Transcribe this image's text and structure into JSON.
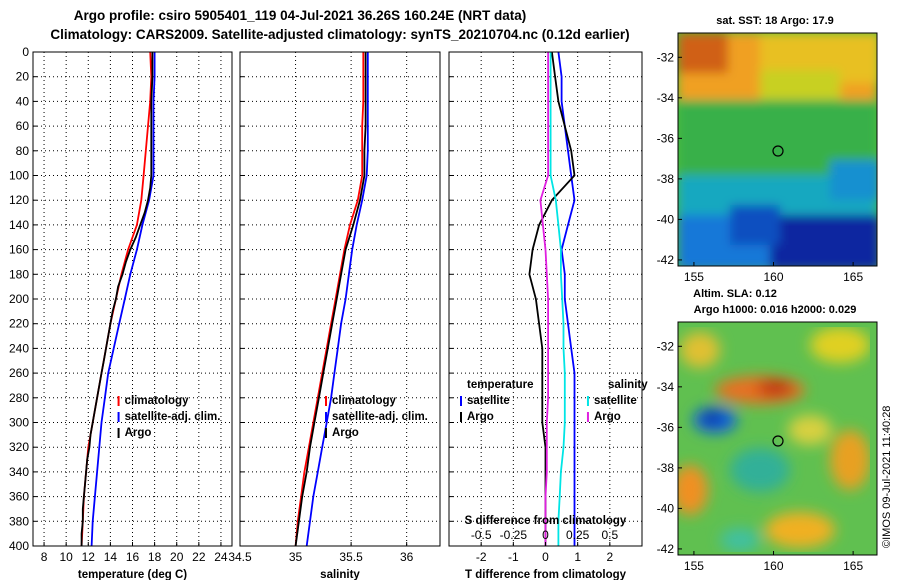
{
  "title_line1": "Argo profile: csiro 5905401_119 04-Jul-2021 36.26S 160.24E (NRT data)",
  "title_line2": "Climatology: CARS2009. Satellite-adjusted climatology: synTS_20210704.nc (0.12d earlier)",
  "watermark": "©IMOS 09-Jul-2021 11:40:28",
  "colors": {
    "red": "#ff0000",
    "blue": "#0000ff",
    "black": "#000000",
    "cyan": "#00e5e5",
    "magenta": "#e020e0"
  },
  "chart_data": [
    {
      "type": "line",
      "name": "temperature",
      "xlabel": "temperature (deg C)",
      "ylabel": "depth",
      "xlim": [
        7,
        25
      ],
      "ylim": [
        0,
        400
      ],
      "y_inverted": true,
      "xticks": [
        8,
        10,
        12,
        14,
        16,
        18,
        20,
        22,
        24
      ],
      "yticks": [
        0,
        20,
        40,
        60,
        80,
        100,
        120,
        140,
        160,
        180,
        200,
        220,
        240,
        260,
        280,
        300,
        320,
        340,
        360,
        380,
        400
      ],
      "grid": true,
      "legend_position": "lower-right",
      "series": [
        {
          "name": "climatology",
          "color": "#ff0000",
          "x": [
            17.6,
            17.7,
            17.6,
            17.4,
            17.2,
            17.0,
            16.8,
            16.4,
            15.6,
            15.0,
            14.5,
            14.0,
            13.6,
            13.2,
            12.8,
            12.4,
            12.0,
            11.8,
            11.6,
            11.5,
            11.4
          ],
          "y": [
            0,
            20,
            40,
            60,
            80,
            100,
            120,
            140,
            160,
            180,
            200,
            220,
            240,
            260,
            280,
            300,
            320,
            340,
            360,
            380,
            400
          ]
        },
        {
          "name": "satellite-adj. clim.",
          "color": "#0000ff",
          "x": [
            18.0,
            18.0,
            17.9,
            17.9,
            17.9,
            17.9,
            17.5,
            16.9,
            16.4,
            15.8,
            15.3,
            14.8,
            14.3,
            13.8,
            13.5,
            13.2,
            13.0,
            12.8,
            12.6,
            12.4,
            12.3
          ],
          "y": [
            0,
            20,
            40,
            60,
            80,
            100,
            120,
            140,
            160,
            180,
            200,
            220,
            240,
            260,
            280,
            300,
            320,
            340,
            360,
            380,
            400
          ]
        },
        {
          "name": "Argo",
          "color": "#000000",
          "x": [
            17.8,
            17.8,
            17.7,
            17.7,
            17.7,
            17.7,
            17.6,
            17.4,
            17.1,
            16.7,
            16.3,
            15.8,
            15.4,
            15.1,
            14.7,
            14.5,
            14.2,
            14.0,
            13.8,
            13.6,
            13.4,
            13.2,
            13.0,
            12.8,
            12.6,
            12.4,
            12.2,
            12.1,
            11.9,
            11.8,
            11.7,
            11.6,
            11.5,
            11.5,
            11.4,
            11.4
          ],
          "y": [
            0,
            20,
            40,
            60,
            80,
            100,
            110,
            120,
            130,
            140,
            150,
            160,
            170,
            180,
            190,
            200,
            210,
            220,
            230,
            240,
            250,
            260,
            270,
            280,
            290,
            300,
            310,
            320,
            330,
            340,
            350,
            360,
            370,
            380,
            390,
            400
          ]
        }
      ],
      "legend": [
        "climatology",
        "satellite-adj. clim.",
        "Argo"
      ]
    },
    {
      "type": "line",
      "name": "salinity",
      "xlabel": "salinity",
      "ylabel": "depth",
      "xlim": [
        34.5,
        36.3
      ],
      "ylim": [
        0,
        400
      ],
      "y_inverted": true,
      "xticks": [
        34.5,
        35,
        35.5,
        36
      ],
      "xticklabels": [
        "34.5",
        "35",
        "35.5",
        "36"
      ],
      "grid": true,
      "legend_position": "lower-right",
      "series": [
        {
          "name": "climatology",
          "color": "#ff0000",
          "x": [
            35.61,
            35.61,
            35.61,
            35.6,
            35.6,
            35.6,
            35.56,
            35.49,
            35.44,
            35.4,
            35.36,
            35.32,
            35.28,
            35.24,
            35.2,
            35.16,
            35.12,
            35.08,
            35.05,
            35.02,
            35.0
          ],
          "y": [
            0,
            20,
            40,
            60,
            80,
            100,
            120,
            140,
            160,
            180,
            200,
            220,
            240,
            260,
            280,
            300,
            320,
            340,
            360,
            380,
            400
          ]
        },
        {
          "name": "satellite-adj. clim.",
          "color": "#0000ff",
          "x": [
            35.65,
            35.65,
            35.65,
            35.65,
            35.65,
            35.64,
            35.6,
            35.55,
            35.51,
            35.48,
            35.45,
            35.41,
            35.38,
            35.35,
            35.32,
            35.28,
            35.24,
            35.2,
            35.16,
            35.13,
            35.1
          ],
          "y": [
            0,
            20,
            40,
            60,
            80,
            100,
            120,
            140,
            160,
            180,
            200,
            220,
            240,
            260,
            280,
            300,
            320,
            340,
            360,
            380,
            400
          ]
        },
        {
          "name": "Argo",
          "color": "#000000",
          "x": [
            35.63,
            35.63,
            35.63,
            35.63,
            35.62,
            35.62,
            35.58,
            35.52,
            35.45,
            35.41,
            35.37,
            35.33,
            35.29,
            35.25,
            35.21,
            35.17,
            35.13,
            35.1,
            35.06,
            35.03,
            35.0
          ],
          "y": [
            0,
            20,
            40,
            60,
            80,
            100,
            120,
            140,
            160,
            180,
            200,
            220,
            240,
            260,
            280,
            300,
            320,
            340,
            360,
            380,
            400
          ]
        }
      ],
      "legend": [
        "climatology",
        "satellite-adj. clim.",
        "Argo"
      ]
    },
    {
      "type": "line",
      "name": "difference",
      "xlabel": "T difference from climatology",
      "x2label": "S difference from climatology",
      "ylabel": "depth",
      "xlim": [
        -3,
        3
      ],
      "x2lim": [
        -0.75,
        0.75
      ],
      "ylim": [
        0,
        400
      ],
      "y_inverted": true,
      "xticks": [
        -2,
        -1,
        0,
        1,
        2
      ],
      "xticklabels": [
        "-2",
        "-1",
        "0",
        "1",
        "2"
      ],
      "x2ticks": [
        -0.5,
        -0.25,
        0,
        0.25,
        0.5
      ],
      "x2ticklabels": [
        "-0.5",
        "-0.25",
        "0",
        "0.25",
        "0.5"
      ],
      "grid": true,
      "legend_position": "lower",
      "legend_groups": {
        "temperature": "temperature",
        "salinity": "salinity"
      },
      "series": [
        {
          "name": "satellite",
          "group": "temperature",
          "color": "#0000ff",
          "x": [
            0.4,
            0.5,
            0.5,
            0.6,
            0.7,
            0.8,
            0.9,
            0.7,
            0.5,
            0.6,
            0.6,
            0.7,
            0.8,
            0.9,
            0.9,
            0.9,
            0.9,
            0.9,
            0.9,
            0.9,
            0.9
          ],
          "y": [
            0,
            20,
            40,
            60,
            80,
            100,
            120,
            140,
            160,
            180,
            200,
            220,
            240,
            260,
            280,
            300,
            320,
            340,
            360,
            380,
            400
          ]
        },
        {
          "name": "Argo",
          "group": "temperature",
          "color": "#000000",
          "x": [
            0.2,
            0.3,
            0.4,
            0.6,
            0.8,
            0.9,
            0.2,
            -0.2,
            -0.4,
            -0.5,
            -0.3,
            -0.2,
            -0.1,
            -0.1,
            -0.1,
            -0.1,
            0.0,
            0.0,
            0.0,
            0.0,
            0.0
          ],
          "y": [
            0,
            20,
            40,
            60,
            80,
            100,
            120,
            140,
            160,
            180,
            200,
            220,
            240,
            260,
            280,
            300,
            320,
            340,
            360,
            380,
            400
          ]
        },
        {
          "name": "satellite",
          "group": "salinity",
          "color": "#00e5e5",
          "x": [
            0.04,
            0.04,
            0.04,
            0.04,
            0.04,
            0.04,
            0.08,
            0.1,
            0.12,
            0.12,
            0.13,
            0.14,
            0.14,
            0.15,
            0.15,
            0.15,
            0.14,
            0.12,
            0.11,
            0.1,
            0.1
          ],
          "y": [
            0,
            20,
            40,
            60,
            80,
            100,
            120,
            140,
            160,
            180,
            200,
            220,
            240,
            260,
            280,
            300,
            320,
            340,
            360,
            380,
            400
          ]
        },
        {
          "name": "Argo",
          "group": "salinity",
          "color": "#e020e0",
          "x": [
            0.02,
            0.02,
            0.02,
            0.02,
            0.02,
            0.02,
            -0.04,
            -0.02,
            0.0,
            0.01,
            0.02,
            0.02,
            0.02,
            0.02,
            0.02,
            0.01,
            0.01,
            0.01,
            0.0,
            0.0,
            0.0
          ],
          "y": [
            0,
            20,
            40,
            60,
            80,
            100,
            120,
            140,
            160,
            180,
            200,
            220,
            240,
            260,
            280,
            300,
            320,
            340,
            360,
            380,
            400
          ]
        }
      ],
      "legend": [
        "satellite",
        "Argo",
        "satellite",
        "Argo"
      ]
    },
    {
      "type": "heatmap",
      "name": "sst-map",
      "title": "sat. SST: 18 Argo: 17.9",
      "xlim": [
        154,
        166.5
      ],
      "ylim": [
        -42.3,
        -30.8
      ],
      "xticks": [
        155,
        160,
        165
      ],
      "yticks": [
        -32,
        -34,
        -36,
        -38,
        -40,
        -42
      ],
      "marker": {
        "lon": 160.24,
        "lat": -36.26
      }
    },
    {
      "type": "heatmap",
      "name": "sla-map",
      "title": "Altim. SLA: 0.12",
      "subtitle": "Argo h1000: 0.016 h2000: 0.029",
      "xlim": [
        154,
        166.5
      ],
      "ylim": [
        -42.3,
        -30.8
      ],
      "xticks": [
        155,
        160,
        165
      ],
      "yticks": [
        -32,
        -34,
        -36,
        -38,
        -40,
        -42
      ],
      "marker": {
        "lon": 160.24,
        "lat": -36.26
      }
    }
  ]
}
